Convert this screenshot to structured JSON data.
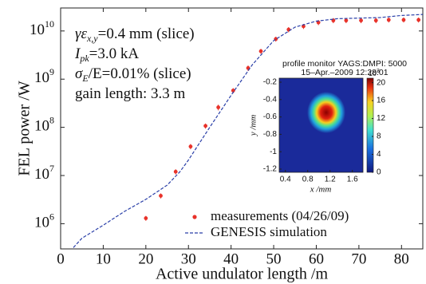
{
  "chart_data": [
    {
      "type": "line",
      "xlabel": "Active undulator length /m",
      "ylabel": "FEL power /W",
      "log_y": true,
      "xlim": [
        0,
        85
      ],
      "ylim": [
        300000,
        30000000000
      ],
      "xticks": [
        0,
        10,
        20,
        30,
        40,
        50,
        60,
        70,
        80
      ],
      "yticks": [
        {
          "value": 1000000,
          "label": "10",
          "exponent": "6"
        },
        {
          "value": 10000000,
          "label": "10",
          "exponent": "7"
        },
        {
          "value": 100000000,
          "label": "10",
          "exponent": "8"
        },
        {
          "value": 1000000000,
          "label": "10",
          "exponent": "9"
        },
        {
          "value": 10000000000,
          "label": "10",
          "exponent": "10"
        }
      ],
      "legend": "lower right",
      "annotations": [
        {
          "main": "γε",
          "sub": "x,y",
          "rest": "=0.4 mm (slice)"
        },
        {
          "main": "I",
          "sub": "pk",
          "rest": "=3.0 kA"
        },
        {
          "main": "σ",
          "sub": "E",
          "rest": "/E=0.01% (slice)"
        },
        {
          "main": "gain length: 3.3 m"
        }
      ],
      "series": [
        {
          "name": "measurements (04/26/09)",
          "style": "markers",
          "color": "#e8322a",
          "x": [
            20,
            23.5,
            27,
            30.5,
            34,
            37,
            40.5,
            44,
            47,
            50.5,
            53.5,
            57,
            60.5,
            64,
            67,
            70.5,
            74,
            77,
            80.5,
            84
          ],
          "values": [
            1300000,
            3800000,
            12000000,
            40000000,
            107000000,
            260000000,
            580000000,
            1700000000,
            3800000000,
            6800000000,
            10700000000,
            12500000000,
            15000000000,
            16500000000,
            16500000000,
            16500000000,
            16500000000,
            17000000000,
            17000000000,
            17000000000
          ],
          "errors": [
            150000,
            450000,
            1500000,
            5000000,
            13000000,
            35000000,
            70000000,
            220000000,
            450000000,
            800000000,
            1300000000,
            1500000000,
            1800000000,
            2000000000,
            2000000000,
            2000000000,
            2000000000,
            2000000000,
            2000000000,
            2000000000
          ]
        },
        {
          "name": "GENESIS simulation",
          "style": "dashed",
          "color": "#2a3fa8",
          "x": [
            3,
            5,
            10,
            15,
            20,
            25,
            28,
            30,
            35,
            40,
            45,
            50,
            55,
            60,
            65,
            70,
            75,
            80,
            85
          ],
          "values": [
            320000,
            500000,
            930000,
            1800000,
            3200000,
            6300000,
            12000000,
            21000000,
            100000000,
            460000000,
            2000000000,
            6300000000,
            12000000000,
            16000000000,
            18000000000,
            18500000000,
            19000000000,
            21000000000,
            22000000000
          ]
        }
      ]
    },
    {
      "type": "heatmap",
      "title": "profile monitor YAGS:DMPI: 5000",
      "subtitle": "15–Apr.–2009 12:28:01",
      "xlabel": "x /mm",
      "ylabel": "y /mm",
      "xlim": [
        0.29,
        1.79
      ],
      "ylim": [
        -1.237,
        -0.154
      ],
      "xticks": [
        0.4,
        0.8,
        1.2,
        1.6
      ],
      "yticks": [
        -0.2,
        -0.4,
        -0.6,
        -0.8,
        -1.0,
        -1.2
      ],
      "clim": [
        0,
        21
      ],
      "cticks": [
        0,
        4,
        8,
        12,
        16,
        20
      ],
      "colorbar_label": {
        "base": "10",
        "exponent": "3"
      }
    }
  ]
}
